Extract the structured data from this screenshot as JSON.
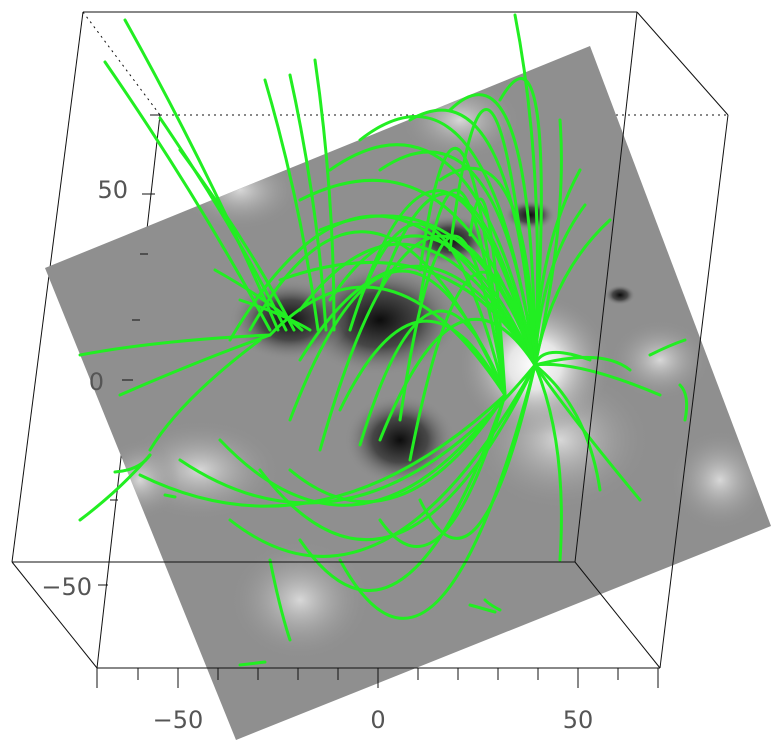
{
  "figure": {
    "description_free": true,
    "axes": {
      "x_tick_labels": [
        "−50",
        "0",
        "50"
      ],
      "y_tick_labels": [
        "50",
        "0",
        "−50"
      ]
    },
    "colors": {
      "field_lines": "#22ee22",
      "box": "#111111",
      "magnetogram_dark": "#1a1a1a",
      "magnetogram_mid": "#8f8f8f",
      "magnetogram_light": "#f4f4f4"
    },
    "field_line_count": 90,
    "magnetogram": "grayscale",
    "projection": "3d-box"
  }
}
